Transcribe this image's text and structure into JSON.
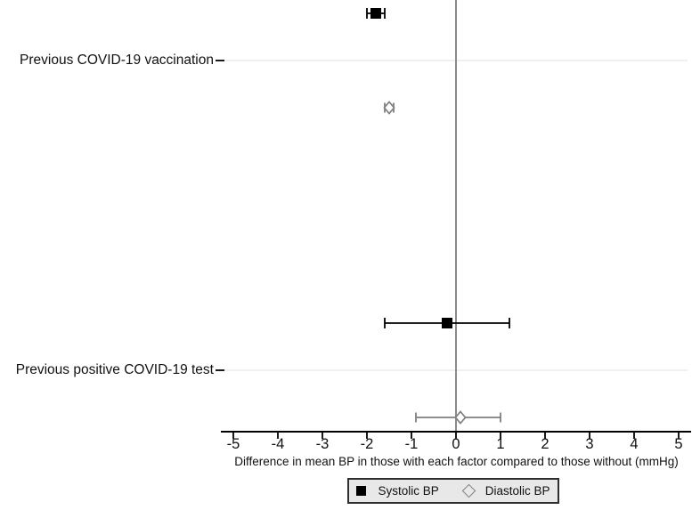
{
  "chart_data": {
    "type": "forest",
    "xlabel": "Difference in mean BP in those with each factor compared to those without (mmHg)",
    "xlim": [
      -5.2,
      5.3
    ],
    "xticks": [
      -5,
      -4,
      -3,
      -2,
      -1,
      0,
      1,
      2,
      3,
      4,
      5
    ],
    "reference_line_x": 0,
    "grid": "faint horizontal gridline at each category row",
    "legend_position": "bottom-center",
    "legend": [
      {
        "label": "Systolic BP",
        "marker": "filled-square",
        "color": "#000000"
      },
      {
        "label": "Diastolic BP",
        "marker": "open-diamond",
        "color": "#7f7f7f"
      }
    ],
    "rows": [
      {
        "label": "Previous COVID-19 vaccination",
        "points": [
          {
            "series": "Systolic BP",
            "estimate": -1.8,
            "ci_low": -2.0,
            "ci_high": -1.6
          },
          {
            "series": "Diastolic BP",
            "estimate": -1.5,
            "ci_low": -1.6,
            "ci_high": -1.4
          }
        ]
      },
      {
        "label": "Previous positive COVID-19 test",
        "points": [
          {
            "series": "Systolic BP",
            "estimate": -0.2,
            "ci_low": -1.6,
            "ci_high": 1.2
          },
          {
            "series": "Diastolic BP",
            "estimate": 0.1,
            "ci_low": -0.9,
            "ci_high": 1.0
          }
        ]
      }
    ]
  },
  "colors": {
    "systolic": "#000000",
    "diastolic": "#7f7f7f",
    "reference_line": "#8a8a8a",
    "gridline": "#ececec",
    "axis": "#000000",
    "text": "#111111",
    "legend_bg": "#e8e8e8",
    "legend_border": "#2f2f2f",
    "background": "#ffffff"
  }
}
